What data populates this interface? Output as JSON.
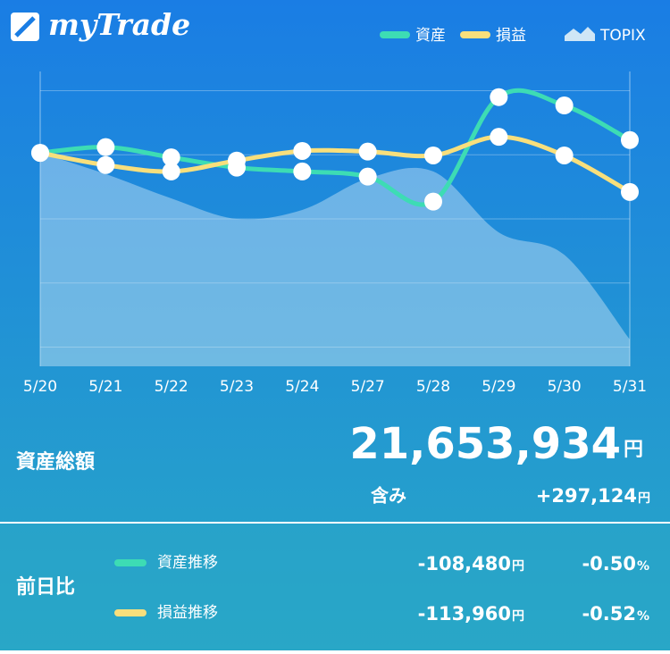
{
  "header": {
    "logo": "myTrade"
  },
  "chart_data": {
    "type": "line",
    "categories": [
      "5/20",
      "5/21",
      "5/22",
      "5/23",
      "5/24",
      "5/27",
      "5/28",
      "5/29",
      "5/30",
      "5/31"
    ],
    "series": [
      {
        "name": "資産",
        "color": "#3ddcb4",
        "values": [
          3.03,
          3.12,
          2.96,
          2.8,
          2.74,
          2.66,
          2.27,
          3.9,
          3.77,
          3.23
        ]
      },
      {
        "name": "損益",
        "color": "#f8df7c",
        "values": [
          3.03,
          2.84,
          2.74,
          2.91,
          3.06,
          3.05,
          2.99,
          3.28,
          2.99,
          2.42
        ]
      },
      {
        "name": "TOPIX",
        "color": "#cfe6f6",
        "type": "area",
        "values": [
          3.03,
          2.7,
          2.32,
          2.0,
          2.14,
          2.63,
          2.74,
          1.79,
          1.44,
          0.12
        ]
      }
    ],
    "ylim": [
      -0.3,
      4.3
    ],
    "yticks": [
      0,
      1,
      2,
      3,
      4
    ],
    "grid": true
  },
  "summary": {
    "total_label": "資産総額",
    "total_value": "21,653,934",
    "total_unit": "円",
    "unrealized_label": "含み",
    "unrealized_value": "+297,124",
    "unrealized_unit": "円",
    "change_label": "前日比",
    "rows": [
      {
        "label": "資産推移",
        "color": "#3ddcb4",
        "amount": "-108,480",
        "unit": "円",
        "percent": "-0.50",
        "percent_unit": "%"
      },
      {
        "label": "損益推移",
        "color": "#f8df7c",
        "amount": "-113,960",
        "unit": "円",
        "percent": "-0.52",
        "percent_unit": "%"
      }
    ]
  }
}
